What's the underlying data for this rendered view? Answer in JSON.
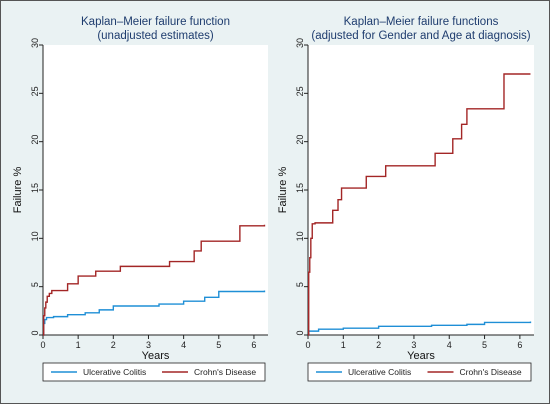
{
  "colors": {
    "background": "#eaf2f3",
    "plot_background": "#ffffff",
    "ulcerative_colitis": "#1f8fd6",
    "crohns_disease": "#a32626",
    "title": "#1e3c6e"
  },
  "chart_data": [
    {
      "type": "line",
      "step": true,
      "title": "Kaplan–Meier failure function",
      "subtitle": "(unadjusted estimates)",
      "xlabel": "Years",
      "ylabel": "Failure %",
      "xlim": [
        0,
        6.4
      ],
      "ylim": [
        0,
        30
      ],
      "xticks": [
        "0",
        "1",
        "2",
        "3",
        "4",
        "5",
        "6"
      ],
      "yticks": [
        "0",
        "5",
        "10",
        "15",
        "20",
        "25",
        "30"
      ],
      "grid": false,
      "legend_position": "bottom",
      "series": [
        {
          "name": "Ulcerative Colitis",
          "x": [
            0,
            0.02,
            0.05,
            0.1,
            0.3,
            0.7,
            1.2,
            1.6,
            2.0,
            3.3,
            4.0,
            4.6,
            5.0,
            6.3
          ],
          "y": [
            0,
            1.2,
            1.6,
            1.8,
            1.9,
            2.1,
            2.3,
            2.6,
            3.0,
            3.2,
            3.5,
            3.9,
            4.5,
            4.6
          ]
        },
        {
          "name": "Crohn's Disease",
          "x": [
            0,
            0.02,
            0.05,
            0.08,
            0.12,
            0.18,
            0.25,
            0.7,
            1.0,
            1.5,
            2.2,
            3.6,
            4.3,
            4.5,
            5.6,
            6.3
          ],
          "y": [
            0,
            2.0,
            2.8,
            3.4,
            4.0,
            4.3,
            4.6,
            5.3,
            6.1,
            6.6,
            7.1,
            7.6,
            8.7,
            9.7,
            11.3,
            11.4
          ]
        }
      ]
    },
    {
      "type": "line",
      "step": true,
      "title": "Kaplan–Meier failure functions",
      "subtitle": "(adjusted for Gender and Age at diagnosis)",
      "xlabel": "Years",
      "ylabel": "Failure %",
      "xlim": [
        0,
        6.4
      ],
      "ylim": [
        0,
        30
      ],
      "xticks": [
        "0",
        "1",
        "2",
        "3",
        "4",
        "5",
        "6"
      ],
      "yticks": [
        "0",
        "5",
        "10",
        "15",
        "20",
        "25",
        "30"
      ],
      "grid": false,
      "legend_position": "bottom",
      "series": [
        {
          "name": "Ulcerative Colitis",
          "x": [
            0,
            0.02,
            0.3,
            1.0,
            2.0,
            3.5,
            4.5,
            5.0,
            6.3
          ],
          "y": [
            0,
            0.4,
            0.6,
            0.7,
            0.9,
            1.0,
            1.1,
            1.3,
            1.4
          ]
        },
        {
          "name": "Crohn's Disease",
          "x": [
            0,
            0.02,
            0.05,
            0.08,
            0.12,
            0.2,
            0.7,
            0.85,
            0.95,
            1.65,
            2.2,
            3.6,
            4.1,
            4.35,
            4.5,
            5.55,
            6.3
          ],
          "y": [
            0,
            6.5,
            8.0,
            10.0,
            11.5,
            11.6,
            12.9,
            14.0,
            15.2,
            16.4,
            17.5,
            18.8,
            20.3,
            21.8,
            23.4,
            27.0,
            27.0
          ]
        }
      ]
    }
  ]
}
